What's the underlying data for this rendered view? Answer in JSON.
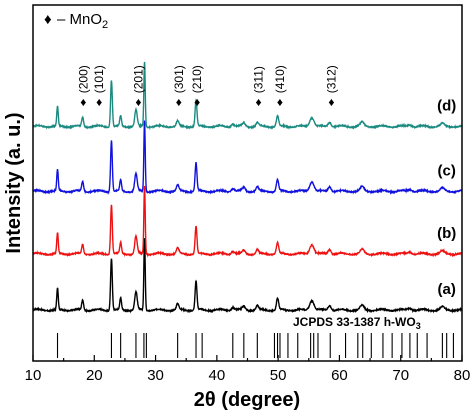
{
  "chart_data": {
    "type": "line",
    "xlabel": "2θ (degree)",
    "ylabel": "Intensity (a. u.)",
    "xlim": [
      10,
      80
    ],
    "xticks": [
      10,
      20,
      30,
      40,
      50,
      60,
      70,
      80
    ],
    "minor_xtick_step": 5,
    "legend": {
      "marker": "♦",
      "text": "– MnO",
      "subscript": "2",
      "placement": "top-left"
    },
    "reference": {
      "label": "JCPDS 33-1387 h-WO",
      "label_subscript": "3",
      "positions": [
        14.0,
        22.8,
        24.3,
        26.8,
        28.1,
        28.5,
        33.6,
        36.6,
        37.6,
        42.6,
        44.4,
        46.6,
        49.4,
        49.9,
        50.3,
        51.6,
        53.2,
        55.3,
        55.8,
        56.5,
        58.5,
        61.0,
        63.0,
        63.8,
        65.2,
        67.1,
        68.6,
        70.2,
        71.5,
        72.7,
        74.3,
        76.8,
        77.5,
        78.6
      ]
    },
    "peak_labels": [
      {
        "hkl": "(200)",
        "x": 18.2
      },
      {
        "hkl": "(101)",
        "x": 20.8
      },
      {
        "hkl": "(201)",
        "x": 27.2
      },
      {
        "hkl": "(301)",
        "x": 33.8
      },
      {
        "hkl": "(210)",
        "x": 36.8
      },
      {
        "hkl": "(311)",
        "x": 46.8
      },
      {
        "hkl": "(410)",
        "x": 50.3
      },
      {
        "hkl": "(312)",
        "x": 58.7
      }
    ],
    "peaks": [
      {
        "x": 14.0,
        "h": 0.3,
        "w": 0.12
      },
      {
        "x": 18.1,
        "h": 0.14,
        "w": 0.15
      },
      {
        "x": 22.8,
        "h": 0.72,
        "w": 0.14
      },
      {
        "x": 24.3,
        "h": 0.16,
        "w": 0.14
      },
      {
        "x": 26.8,
        "h": 0.25,
        "w": 0.2
      },
      {
        "x": 28.2,
        "h": 1.0,
        "w": 0.11
      },
      {
        "x": 33.6,
        "h": 0.08,
        "w": 0.2
      },
      {
        "x": 36.6,
        "h": 0.4,
        "w": 0.15
      },
      {
        "x": 42.6,
        "h": 0.04,
        "w": 0.25
      },
      {
        "x": 44.4,
        "h": 0.05,
        "w": 0.25
      },
      {
        "x": 46.6,
        "h": 0.06,
        "w": 0.2
      },
      {
        "x": 49.9,
        "h": 0.16,
        "w": 0.18
      },
      {
        "x": 55.5,
        "h": 0.14,
        "w": 0.35
      },
      {
        "x": 58.4,
        "h": 0.07,
        "w": 0.25
      },
      {
        "x": 63.7,
        "h": 0.06,
        "w": 0.3
      },
      {
        "x": 71.5,
        "h": 0.03,
        "w": 0.3
      },
      {
        "x": 76.8,
        "h": 0.04,
        "w": 0.3
      }
    ],
    "series": [
      {
        "label": "(a)",
        "color": "#000000",
        "baseline": 0.0,
        "scale": 1.0
      },
      {
        "label": "(b)",
        "color": "#ee1111",
        "baseline": 0.78,
        "scale": 0.95
      },
      {
        "label": "(c)",
        "color": "#1111dd",
        "baseline": 1.65,
        "scale": 0.98
      },
      {
        "label": "(d)",
        "color": "#1a8a80",
        "baseline": 2.55,
        "scale": 0.9
      }
    ]
  }
}
